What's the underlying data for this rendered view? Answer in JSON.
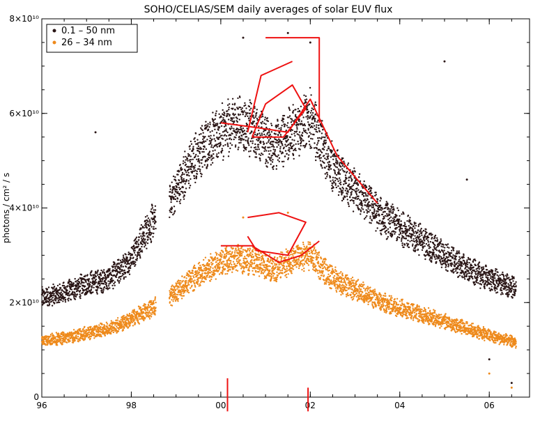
{
  "chart_data": {
    "type": "scatter",
    "title": "SOHO/CELIAS/SEM daily averages of solar EUV flux",
    "ylabel": "photons / cm² / s",
    "xlabel": "",
    "xlim": [
      1996,
      2006.9
    ],
    "ylim": [
      0,
      80000000000.0
    ],
    "x_ticks": [
      1996,
      1998,
      2000,
      2002,
      2004,
      2006
    ],
    "x_tick_labels": [
      "96",
      "98",
      "00",
      "02",
      "04",
      "06"
    ],
    "y_ticks": [
      0,
      20000000000.0,
      40000000000.0,
      60000000000.0,
      80000000000.0
    ],
    "y_tick_labels": [
      "0",
      "2×10¹⁰",
      "4×10¹⁰",
      "6×10¹⁰",
      "8×10¹⁰"
    ],
    "grid": false,
    "legend_position": "top-left",
    "colors": {
      "series1": "#2a1616",
      "series2": "#ee8a1c",
      "annotation": "#ee1111"
    },
    "series": [
      {
        "name": "0.1 – 50 nm",
        "color": "#2a1616",
        "trend": [
          [
            1996.0,
            21000000000.0
          ],
          [
            1996.5,
            22000000000.0
          ],
          [
            1997.0,
            24000000000.0
          ],
          [
            1997.5,
            25000000000.0
          ],
          [
            1997.9,
            28000000000.0
          ],
          [
            1998.4,
            36000000000.0
          ],
          [
            1998.9,
            42000000000.0
          ],
          [
            1999.3,
            49000000000.0
          ],
          [
            1999.7,
            54000000000.0
          ],
          [
            2000.0,
            56000000000.0
          ],
          [
            2000.4,
            58000000000.0
          ],
          [
            2000.8,
            56000000000.0
          ],
          [
            2001.2,
            53000000000.0
          ],
          [
            2001.6,
            56000000000.0
          ],
          [
            2002.0,
            59000000000.0
          ],
          [
            2002.4,
            50000000000.0
          ],
          [
            2002.8,
            45000000000.0
          ],
          [
            2003.2,
            42000000000.0
          ],
          [
            2003.6,
            38000000000.0
          ],
          [
            2004.0,
            36000000000.0
          ],
          [
            2004.5,
            33000000000.0
          ],
          [
            2005.0,
            30000000000.0
          ],
          [
            2005.5,
            27000000000.0
          ],
          [
            2006.0,
            25000000000.0
          ],
          [
            2006.6,
            23000000000.0
          ]
        ],
        "outliers": [
          [
            1997.2,
            56000000000.0
          ],
          [
            2000.5,
            76000000000.0
          ],
          [
            2001.5,
            77000000000.0
          ],
          [
            2002.0,
            75000000000.0
          ],
          [
            2005.0,
            71000000000.0
          ],
          [
            2005.5,
            46000000000.0
          ],
          [
            2006.0,
            8000000000.0
          ],
          [
            2006.5,
            3000000000.0
          ]
        ]
      },
      {
        "name": "26 – 34 nm",
        "color": "#ee8a1c",
        "trend": [
          [
            1996.0,
            12000000000.0
          ],
          [
            1996.5,
            12500000000.0
          ],
          [
            1997.0,
            13500000000.0
          ],
          [
            1997.5,
            14500000000.0
          ],
          [
            1997.9,
            16000000000.0
          ],
          [
            1998.4,
            18500000000.0
          ],
          [
            1998.9,
            21500000000.0
          ],
          [
            1999.3,
            24500000000.0
          ],
          [
            1999.7,
            27000000000.0
          ],
          [
            2000.0,
            28500000000.0
          ],
          [
            2000.4,
            29500000000.0
          ],
          [
            2000.8,
            28500000000.0
          ],
          [
            2001.2,
            27000000000.0
          ],
          [
            2001.6,
            29000000000.0
          ],
          [
            2002.0,
            30000000000.0
          ],
          [
            2002.4,
            26000000000.0
          ],
          [
            2002.8,
            23500000000.0
          ],
          [
            2003.2,
            22000000000.0
          ],
          [
            2003.6,
            20000000000.0
          ],
          [
            2004.0,
            19000000000.0
          ],
          [
            2004.5,
            17500000000.0
          ],
          [
            2005.0,
            16000000000.0
          ],
          [
            2005.5,
            14500000000.0
          ],
          [
            2006.0,
            13000000000.0
          ],
          [
            2006.6,
            11500000000.0
          ]
        ],
        "outliers": [
          [
            2000.5,
            38000000000.0
          ],
          [
            2001.5,
            39000000000.0
          ],
          [
            2006.0,
            5000000000.0
          ],
          [
            2006.5,
            2000000000.0
          ]
        ]
      }
    ],
    "annotations": [
      {
        "label": "upper-loop",
        "points": [
          [
            2000.6,
            56000000000.0
          ],
          [
            2000.9,
            68000000000.0
          ],
          [
            2001.6,
            71000000000.0
          ]
        ]
      },
      {
        "label": "upper-circle",
        "points": [
          [
            2000.7,
            55000000000.0
          ],
          [
            2001.4,
            55000000000.0
          ],
          [
            2001.9,
            61000000000.0
          ],
          [
            2001.6,
            66000000000.0
          ],
          [
            2001.0,
            62000000000.0
          ],
          [
            2000.7,
            55000000000.0
          ]
        ]
      },
      {
        "label": "upper-band",
        "points": [
          [
            2000.0,
            58000000000.0
          ],
          [
            2000.8,
            57000000000.0
          ],
          [
            2001.5,
            56000000000.0
          ],
          [
            2002.0,
            63000000000.0
          ],
          [
            2002.6,
            51000000000.0
          ],
          [
            2003.5,
            41000000000.0
          ]
        ]
      },
      {
        "label": "upper-bracket",
        "points": [
          [
            2001.0,
            76000000000.0
          ],
          [
            2002.2,
            76000000000.0
          ],
          [
            2002.2,
            58000000000.0
          ]
        ]
      },
      {
        "label": "lower-loop",
        "points": [
          [
            2000.6,
            38000000000.0
          ],
          [
            2001.3,
            39000000000.0
          ],
          [
            2001.9,
            37000000000.0
          ],
          [
            2001.5,
            30000000000.0
          ],
          [
            2000.8,
            31000000000.0
          ],
          [
            2000.6,
            34000000000.0
          ]
        ]
      },
      {
        "label": "lower-band",
        "points": [
          [
            2000.0,
            32000000000.0
          ],
          [
            2000.7,
            32000000000.0
          ],
          [
            2001.3,
            28500000000.0
          ],
          [
            2001.8,
            30000000000.0
          ],
          [
            2002.2,
            33000000000.0
          ]
        ]
      },
      {
        "label": "left-vertical",
        "points": [
          [
            2000.15,
            4000000000.0
          ],
          [
            2000.15,
            -3000000000.0
          ]
        ]
      },
      {
        "label": "right-vertical",
        "points": [
          [
            2001.95,
            2000000000.0
          ],
          [
            2001.95,
            -3000000000.0
          ]
        ]
      }
    ]
  }
}
